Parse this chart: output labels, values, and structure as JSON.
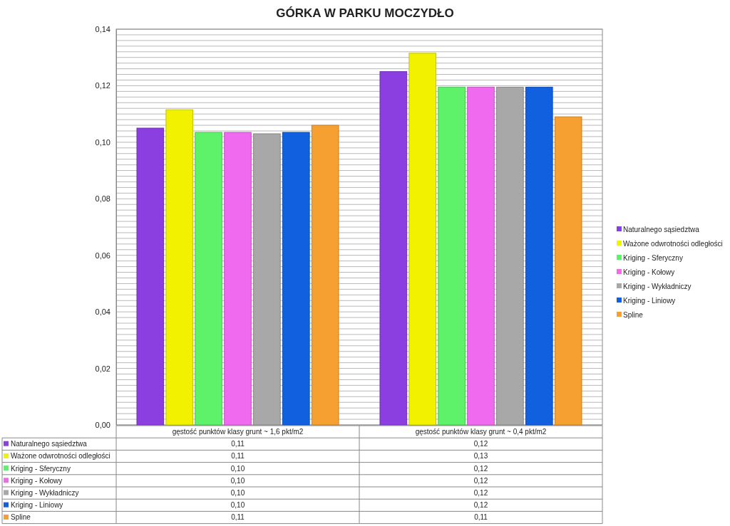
{
  "chart_data": {
    "type": "bar",
    "title": "GÓRKA W PARKU MOCZYDŁO",
    "categories": [
      "gęstość punktów klasy grunt ~ 1,6 pkt/m2",
      "gęstość punktów klasy grunt ~ 0,4 pkt/m2"
    ],
    "series": [
      {
        "name": "Naturalnego sąsiedztwa",
        "color": "#8b3fe0",
        "values": [
          0.105,
          0.125
        ],
        "value_labels": [
          "0,11",
          "0,12"
        ]
      },
      {
        "name": "Ważone odwrotności odległości",
        "color": "#f2f200",
        "values": [
          0.1115,
          0.1315
        ],
        "value_labels": [
          "0,11",
          "0,13"
        ]
      },
      {
        "name": "Kriging - Sferyczny",
        "color": "#5ef26a",
        "values": [
          0.1035,
          0.1195
        ],
        "value_labels": [
          "0,10",
          "0,12"
        ]
      },
      {
        "name": "Kriging - Kołowy",
        "color": "#f06af0",
        "values": [
          0.1035,
          0.1195
        ],
        "value_labels": [
          "0,10",
          "0,12"
        ]
      },
      {
        "name": "Kriging - Wykładniczy",
        "color": "#a8a8a8",
        "values": [
          0.103,
          0.1195
        ],
        "value_labels": [
          "0,10",
          "0,12"
        ]
      },
      {
        "name": "Kriging - Liniowy",
        "color": "#1060e0",
        "values": [
          0.1035,
          0.1195
        ],
        "value_labels": [
          "0,10",
          "0,12"
        ]
      },
      {
        "name": "Spline",
        "color": "#f5a030",
        "values": [
          0.106,
          0.109
        ],
        "value_labels": [
          "0,11",
          "0,11"
        ]
      }
    ],
    "ylim": [
      0,
      0.14
    ],
    "yticks": [
      {
        "value": 0,
        "label": "0,00"
      },
      {
        "value": 0.002,
        "label": null
      },
      {
        "value": 0.004,
        "label": null
      },
      {
        "value": 0.006,
        "label": null
      },
      {
        "value": 0.008,
        "label": null
      },
      {
        "value": 0.01,
        "label": null
      },
      {
        "value": 0.012,
        "label": null
      },
      {
        "value": 0.014,
        "label": null
      },
      {
        "value": 0.016,
        "label": null
      },
      {
        "value": 0.018,
        "label": null
      },
      {
        "value": 0.02,
        "label": "0,02"
      },
      {
        "value": 0.022,
        "label": null
      },
      {
        "value": 0.024,
        "label": null
      },
      {
        "value": 0.026,
        "label": null
      },
      {
        "value": 0.028,
        "label": null
      },
      {
        "value": 0.03,
        "label": null
      },
      {
        "value": 0.032,
        "label": null
      },
      {
        "value": 0.034,
        "label": null
      },
      {
        "value": 0.036,
        "label": null
      },
      {
        "value": 0.038,
        "label": null
      },
      {
        "value": 0.04,
        "label": "0,04"
      },
      {
        "value": 0.042,
        "label": null
      },
      {
        "value": 0.044,
        "label": null
      },
      {
        "value": 0.046,
        "label": null
      },
      {
        "value": 0.048,
        "label": null
      },
      {
        "value": 0.05,
        "label": null
      },
      {
        "value": 0.052,
        "label": null
      },
      {
        "value": 0.054,
        "label": null
      },
      {
        "value": 0.056,
        "label": null
      },
      {
        "value": 0.058,
        "label": null
      },
      {
        "value": 0.06,
        "label": "0,06"
      },
      {
        "value": 0.062,
        "label": null
      },
      {
        "value": 0.064,
        "label": null
      },
      {
        "value": 0.066,
        "label": null
      },
      {
        "value": 0.068,
        "label": null
      },
      {
        "value": 0.07,
        "label": null
      },
      {
        "value": 0.072,
        "label": null
      },
      {
        "value": 0.074,
        "label": null
      },
      {
        "value": 0.076,
        "label": null
      },
      {
        "value": 0.078,
        "label": null
      },
      {
        "value": 0.08,
        "label": "0,08"
      },
      {
        "value": 0.082,
        "label": null
      },
      {
        "value": 0.084,
        "label": null
      },
      {
        "value": 0.086,
        "label": null
      },
      {
        "value": 0.088,
        "label": null
      },
      {
        "value": 0.09,
        "label": null
      },
      {
        "value": 0.092,
        "label": null
      },
      {
        "value": 0.094,
        "label": null
      },
      {
        "value": 0.096,
        "label": null
      },
      {
        "value": 0.098,
        "label": null
      },
      {
        "value": 0.1,
        "label": "0,10"
      },
      {
        "value": 0.102,
        "label": null
      },
      {
        "value": 0.104,
        "label": null
      },
      {
        "value": 0.106,
        "label": null
      },
      {
        "value": 0.108,
        "label": null
      },
      {
        "value": 0.11,
        "label": null
      },
      {
        "value": 0.112,
        "label": null
      },
      {
        "value": 0.114,
        "label": null
      },
      {
        "value": 0.116,
        "label": null
      },
      {
        "value": 0.118,
        "label": null
      },
      {
        "value": 0.12,
        "label": "0,12"
      },
      {
        "value": 0.122,
        "label": null
      },
      {
        "value": 0.124,
        "label": null
      },
      {
        "value": 0.126,
        "label": null
      },
      {
        "value": 0.128,
        "label": null
      },
      {
        "value": 0.13,
        "label": null
      },
      {
        "value": 0.132,
        "label": null
      },
      {
        "value": 0.134,
        "label": null
      },
      {
        "value": 0.136,
        "label": null
      },
      {
        "value": 0.138,
        "label": null
      },
      {
        "value": 0.14,
        "label": "0,14"
      }
    ],
    "grid": "y",
    "legend": "right"
  }
}
